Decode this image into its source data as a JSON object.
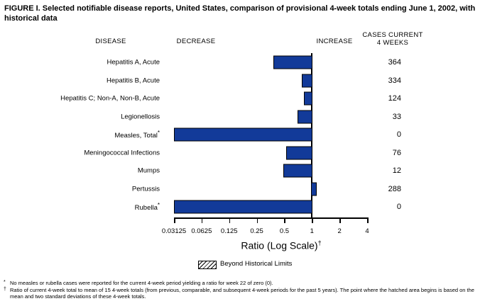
{
  "title": "FIGURE I. Selected notifiable disease reports, United States, comparison of provisional 4-week totals ending June 1, 2002, with historical data",
  "columns": {
    "disease": "DISEASE",
    "decrease": "DECREASE",
    "increase": "INCREASE",
    "cases_line1": "CASES CURRENT",
    "cases_line2": "4 WEEKS"
  },
  "chart_data": {
    "type": "bar",
    "orientation": "horizontal",
    "scale": "log2",
    "title": "Selected notifiable disease reports, ratio of current 4-week total to historical mean",
    "xlabel": "Ratio (Log Scale)",
    "xlabel_superscript": "†",
    "axis": {
      "min": 0.03125,
      "max": 4,
      "baseline": 1,
      "ticks": [
        0.03125,
        0.0625,
        0.125,
        0.25,
        0.5,
        1,
        2,
        4
      ],
      "tick_labels": [
        "0.03125",
        "0.0625",
        "0.125",
        "0.25",
        "0.5",
        "1",
        "2",
        "4"
      ]
    },
    "rows": [
      {
        "disease": "Hepatitis A, Acute",
        "marker": "",
        "ratio": 0.38,
        "cases": "364"
      },
      {
        "disease": "Hepatitis B, Acute",
        "marker": "",
        "ratio": 0.78,
        "cases": "334"
      },
      {
        "disease": "Hepatitis C; Non-A, Non-B, Acute",
        "marker": "",
        "ratio": 0.82,
        "cases": "124"
      },
      {
        "disease": "Legionellosis",
        "marker": "",
        "ratio": 0.7,
        "cases": "33"
      },
      {
        "disease": "Measles, Total",
        "marker": "*",
        "ratio": 0,
        "cases": "0"
      },
      {
        "disease": "Meningococcal Infections",
        "marker": "",
        "ratio": 0.52,
        "cases": "76"
      },
      {
        "disease": "Mumps",
        "marker": "",
        "ratio": 0.49,
        "cases": "12"
      },
      {
        "disease": "Pertussis",
        "marker": "",
        "ratio": 1.13,
        "cases": "288"
      },
      {
        "disease": "Rubella",
        "marker": "*",
        "ratio": 0,
        "cases": "0"
      }
    ],
    "bar_color": "#123a99",
    "legend": {
      "label": "Beyond Historical Limits",
      "swatch": "hatched",
      "position": "bottom-center"
    }
  },
  "footnotes": [
    {
      "marker": "*",
      "text": "No measles or rubella cases were reported for the current 4-week period yielding a ratio for week 22 of zero (0)."
    },
    {
      "marker": "†",
      "text": "Ratio of current 4-week total to mean of 15 4-week totals (from previous, comparable, and subsequent 4-week periods for the past 5 years). The point where the hatched area begins is based on the mean and two standard deviations of these 4-week totals."
    }
  ]
}
